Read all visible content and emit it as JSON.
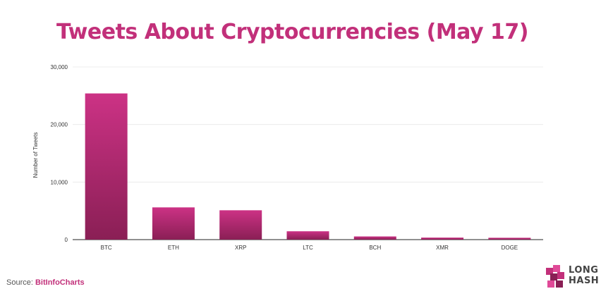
{
  "title": "Tweets About Cryptocurrencies (May 17)",
  "source": {
    "prefix": "Source: ",
    "name": "BitInfoCharts"
  },
  "logo": {
    "line1": "LONG",
    "line2": "HASH"
  },
  "colors": {
    "title": "#c2307a",
    "bar_top": "#cc3285",
    "bar_bottom": "#8a1f55",
    "source": "#c2307a",
    "grid": "#e8e8e8"
  },
  "chart_data": {
    "type": "bar",
    "categories": [
      "BTC",
      "ETH",
      "XRP",
      "LTC",
      "BCH",
      "XMR",
      "DOGE"
    ],
    "values": [
      25400,
      5600,
      5100,
      1450,
      550,
      350,
      320
    ],
    "ylabel": "Number of Tweets",
    "ylim": [
      0,
      30000
    ],
    "yticks": [
      0,
      10000,
      20000,
      30000
    ],
    "ytick_labels": [
      "0",
      "10,000",
      "20,000",
      "30,000"
    ],
    "grid": true
  }
}
